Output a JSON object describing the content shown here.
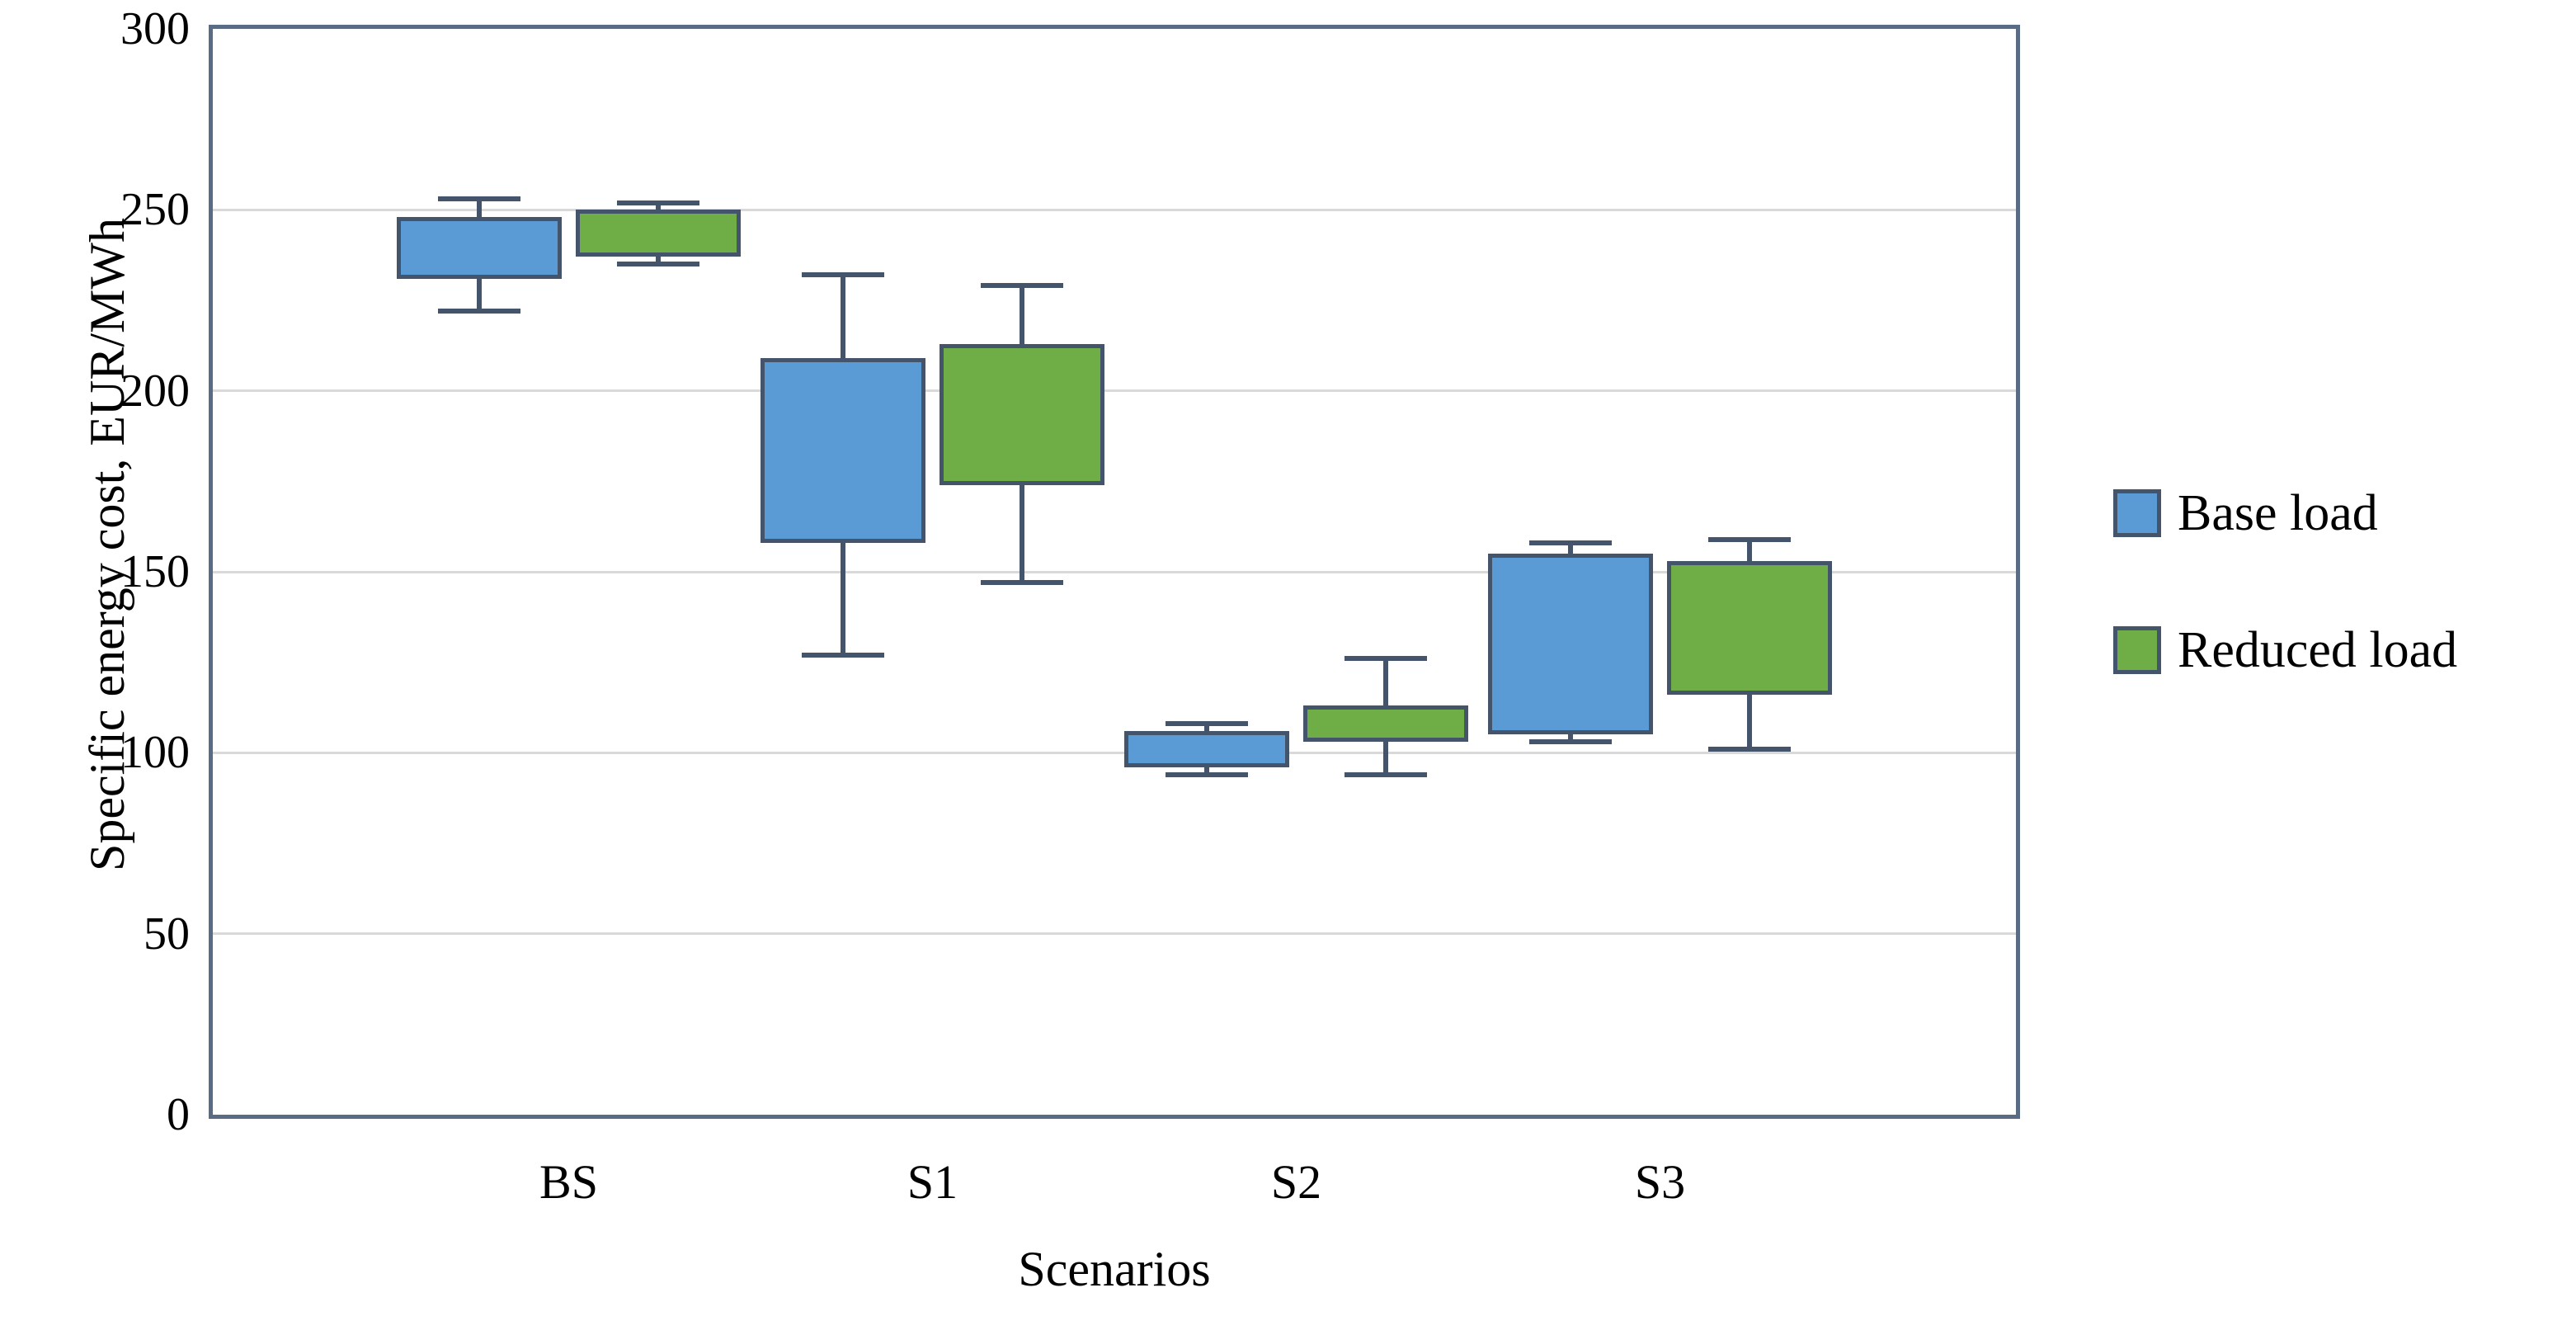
{
  "y_axis": {
    "title": "Specific energy cost, EUR/MWh",
    "min": 0,
    "max": 300,
    "tick_step": 50,
    "ticks": [
      0,
      50,
      100,
      150,
      200,
      250,
      300
    ]
  },
  "x_axis": {
    "title": "Scenarios",
    "categories": [
      "BS",
      "S1",
      "S2",
      "S3"
    ]
  },
  "legend": {
    "position": "right",
    "entries": [
      {
        "label": "Base load",
        "color": "#5b9bd5"
      },
      {
        "label": "Reduced load",
        "color": "#6fad47"
      }
    ]
  },
  "colors": {
    "base_load_fill": "#5b9bd5",
    "reduced_load_fill": "#6fad47",
    "box_border": "#44546a",
    "whisker": "#44546a",
    "gridline": "#d9d9d9",
    "plot_border": "#5a6b84",
    "text": "#000000",
    "background": "#ffffff"
  },
  "chart_data": {
    "type": "boxplot",
    "title": "",
    "xlabel": "Scenarios",
    "ylabel": "Specific energy cost, EUR/MWh",
    "ylim": [
      0,
      300
    ],
    "grid": true,
    "legend_position": "right",
    "categories": [
      "BS",
      "S1",
      "S2",
      "S3"
    ],
    "series": [
      {
        "name": "Base load",
        "color": "#5b9bd5",
        "boxes": [
          {
            "category": "BS",
            "min": 222,
            "q1": 231,
            "q3": 248,
            "max": 253
          },
          {
            "category": "S1",
            "min": 127,
            "q1": 158,
            "q3": 209,
            "max": 232
          },
          {
            "category": "S2",
            "min": 94,
            "q1": 96,
            "q3": 106,
            "max": 108
          },
          {
            "category": "S3",
            "min": 103,
            "q1": 105,
            "q3": 155,
            "max": 158
          }
        ]
      },
      {
        "name": "Reduced load",
        "color": "#6fad47",
        "boxes": [
          {
            "category": "BS",
            "min": 235,
            "q1": 237,
            "q3": 250,
            "max": 252
          },
          {
            "category": "S1",
            "min": 147,
            "q1": 174,
            "q3": 213,
            "max": 229
          },
          {
            "category": "S2",
            "min": 94,
            "q1": 103,
            "q3": 113,
            "max": 126
          },
          {
            "category": "S3",
            "min": 101,
            "q1": 116,
            "q3": 153,
            "max": 159
          }
        ]
      }
    ]
  }
}
